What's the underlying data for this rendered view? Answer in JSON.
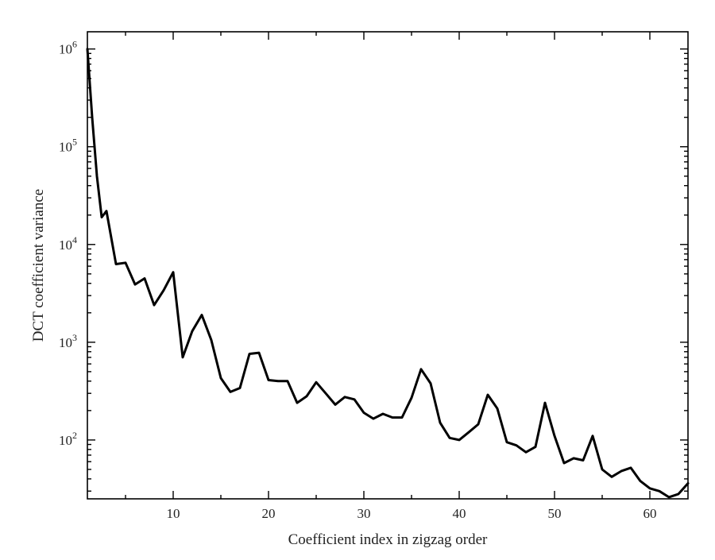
{
  "chart_data": {
    "type": "line",
    "title": "",
    "xlabel": "Coefficient index in zigzag order",
    "ylabel": "DCT coefficient variance",
    "xlim": [
      1,
      64
    ],
    "ylim": [
      25,
      1500000
    ],
    "yscale": "log",
    "grid": false,
    "line_color": "#000000",
    "x_ticks": [
      10,
      20,
      30,
      40,
      50,
      60
    ],
    "x_tick_labels": [
      "10",
      "20",
      "30",
      "40",
      "50",
      "60"
    ],
    "y_ticks": [
      100,
      1000,
      10000,
      100000,
      1000000
    ],
    "y_tick_labels": [
      {
        "base": "10",
        "exp": "2"
      },
      {
        "base": "10",
        "exp": "3"
      },
      {
        "base": "10",
        "exp": "4"
      },
      {
        "base": "10",
        "exp": "5"
      },
      {
        "base": "10",
        "exp": "6"
      }
    ],
    "series": [
      {
        "x": [
          1,
          1.5,
          2,
          2.5,
          3,
          4,
          5,
          6,
          7,
          8,
          9,
          10,
          11,
          12,
          13,
          14,
          15,
          16,
          17,
          18,
          19,
          20,
          21,
          22,
          23,
          24,
          25,
          26,
          27,
          28,
          29,
          30,
          31,
          32,
          33,
          34,
          35,
          36,
          37,
          38,
          39,
          40,
          41,
          42,
          43,
          44,
          45,
          46,
          47,
          48,
          49,
          50,
          51,
          52,
          53,
          54,
          55,
          56,
          57,
          58,
          59,
          60,
          61,
          62,
          63,
          64
        ],
        "values": [
          1000000,
          200000,
          50000,
          19000,
          22000,
          6300,
          6500,
          3900,
          4500,
          2400,
          3400,
          5200,
          700,
          1300,
          1900,
          1050,
          430,
          310,
          340,
          760,
          780,
          410,
          400,
          400,
          240,
          280,
          390,
          300,
          230,
          275,
          260,
          190,
          165,
          185,
          170,
          170,
          270,
          530,
          380,
          150,
          105,
          100,
          120,
          145,
          290,
          210,
          95,
          88,
          75,
          85,
          240,
          110,
          58,
          65,
          62,
          110,
          50,
          42,
          48,
          52,
          38,
          32,
          30,
          26,
          28,
          36
        ]
      }
    ]
  }
}
